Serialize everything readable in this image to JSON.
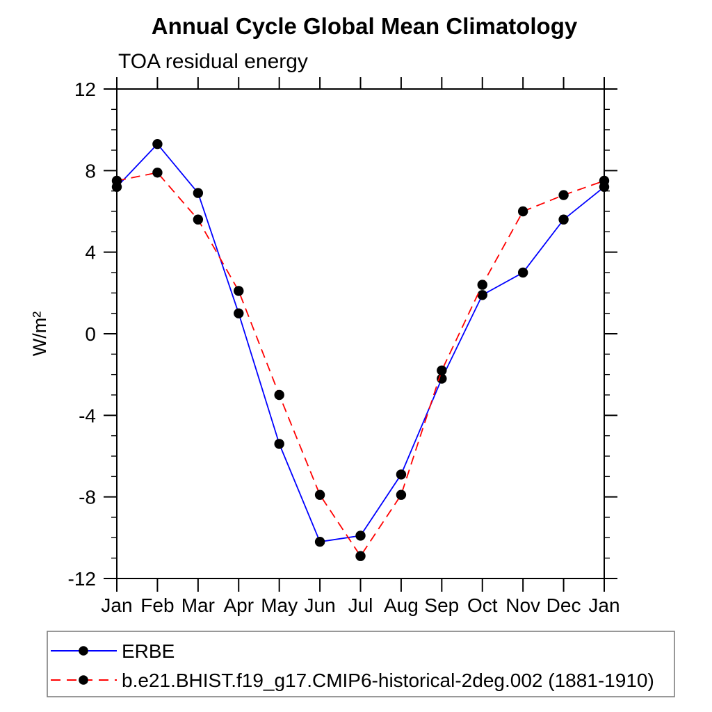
{
  "chart_data": {
    "type": "line",
    "title": "Annual Cycle Global Mean Climatology",
    "subtitle": "TOA residual energy",
    "ylabel": "W/m²",
    "xlabel": "",
    "categories": [
      "Jan",
      "Feb",
      "Mar",
      "Apr",
      "May",
      "Jun",
      "Jul",
      "Aug",
      "Sep",
      "Oct",
      "Nov",
      "Dec",
      "Jan"
    ],
    "ylim": [
      -12,
      12
    ],
    "y_major_ticks": [
      12,
      8,
      4,
      0,
      -4,
      -8,
      -12
    ],
    "y_minor_step": 1,
    "grid": false,
    "legend_position": "bottom",
    "axis_color": "#000000",
    "legend_border_color": "#777777",
    "marker": {
      "shape": "filled-circle",
      "color": "#000000"
    },
    "series": [
      {
        "name": "ERBE",
        "color": "#0000ff",
        "line_style": "solid",
        "values": [
          7.2,
          9.3,
          6.9,
          1.0,
          -5.4,
          -10.2,
          -9.9,
          -6.9,
          -2.2,
          1.9,
          3.0,
          5.6,
          7.2
        ]
      },
      {
        "name": "b.e21.BHIST.f19_g17.CMIP6-historical-2deg.002 (1881-1910)",
        "color": "#ff0000",
        "line_style": "dashed",
        "values": [
          7.5,
          7.9,
          5.6,
          2.1,
          -3.0,
          -7.9,
          -10.9,
          -7.9,
          -1.8,
          2.4,
          6.0,
          6.8,
          7.5
        ]
      }
    ]
  }
}
